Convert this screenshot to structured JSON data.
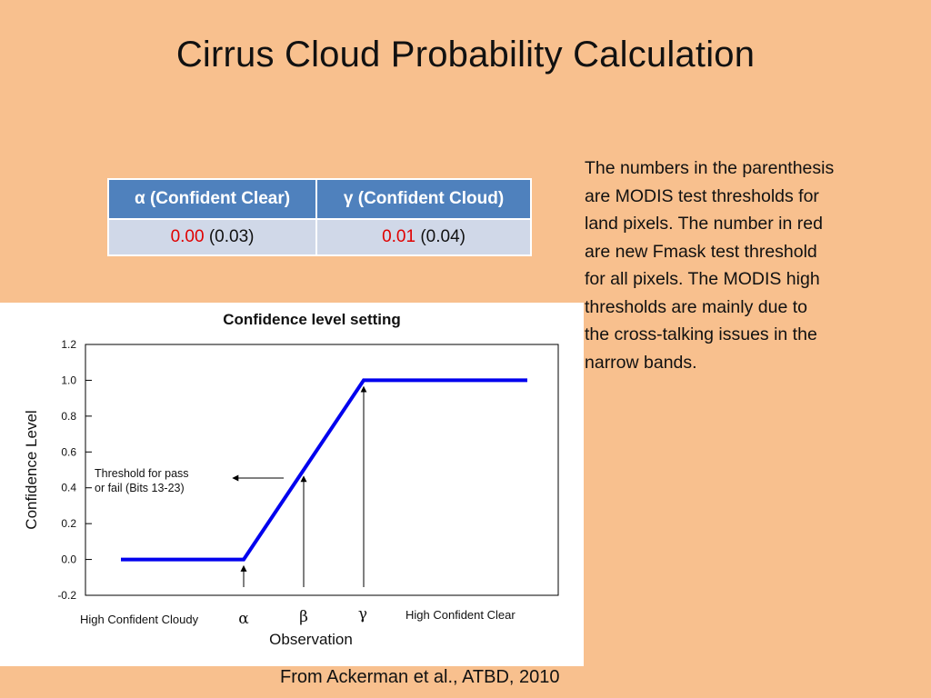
{
  "slide": {
    "title": "Cirrus Cloud Probability Calculation",
    "credit": "From Ackerman et al., ATBD, 2010"
  },
  "table": {
    "headers": [
      "α (Confident Clear)",
      "γ (Confident Cloud)"
    ],
    "rows": [
      [
        {
          "new": "0.00",
          "modis": "(0.03)"
        },
        {
          "new": "0.01",
          "modis": "(0.04)"
        }
      ]
    ],
    "colors": {
      "header_bg": "#4f81bd",
      "row_bg": "#d0d8e8",
      "new_value": "#e00000"
    }
  },
  "note": {
    "lines": [
      "The numbers in the parenthesis",
      "are MODIS test thresholds for",
      "land pixels. The number in red",
      "are new Fmask test threshold",
      "for all pixels. The MODIS high",
      "thresholds are mainly due to",
      "the cross-talking issues in the",
      "narrow bands."
    ]
  },
  "chart_data": {
    "type": "line",
    "title": "Confidence level setting",
    "xlabel": "Observation",
    "ylabel": "Confidence Level",
    "ylim": [
      -0.2,
      1.2
    ],
    "yticks": [
      "1.2",
      "1.0",
      "0.8",
      "0.6",
      "0.4",
      "0.2",
      "0.0",
      "-0.2"
    ],
    "x_labels": [
      "High Confident Cloudy",
      "α",
      "β",
      "γ",
      "High Confident Clear"
    ],
    "series": [
      {
        "color": "#0000ee",
        "points": [
          {
            "x": "start",
            "y": 0.0
          },
          {
            "x": "α",
            "y": 0.0
          },
          {
            "x": "γ",
            "y": 1.0
          },
          {
            "x": "end",
            "y": 1.0
          }
        ]
      }
    ],
    "markers": [
      {
        "label": "α",
        "y": 0.0
      },
      {
        "label": "β",
        "y": 0.5
      },
      {
        "label": "γ",
        "y": 1.0
      }
    ],
    "annotation": {
      "text_lines": [
        "Threshold for pass",
        "or fail (Bits 13-23)"
      ]
    },
    "grid": false
  }
}
